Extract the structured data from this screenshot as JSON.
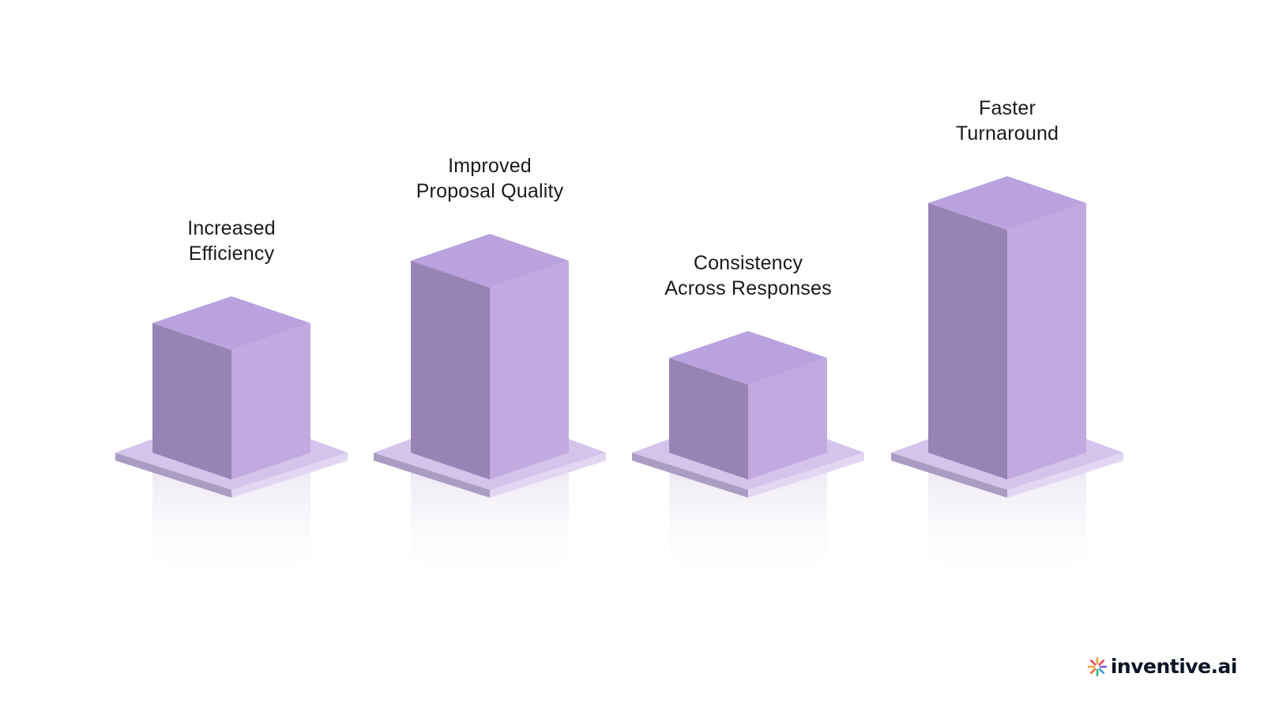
{
  "blocks": [
    {
      "label_line1": "Increased",
      "label_line2": "Efficiency",
      "relative_height": 0.52
    },
    {
      "label_line1": "Improved",
      "label_line2": "Proposal Quality",
      "relative_height": 0.77
    },
    {
      "label_line1": "Consistency",
      "label_line2": "Across Responses",
      "relative_height": 0.38
    },
    {
      "label_line1": "Faster",
      "label_line2": "Turnaround",
      "relative_height": 1.0
    }
  ],
  "colors": {
    "cube_top": "#b9a2de",
    "cube_left": "#9884b4",
    "cube_right": "#c2aae0",
    "base_top": "#d4c4ec",
    "base_left": "#ab9cc3",
    "base_right": "#e2d6f3"
  },
  "logo": {
    "text": "inventive.ai",
    "icon": "sunburst-logo-icon"
  }
}
